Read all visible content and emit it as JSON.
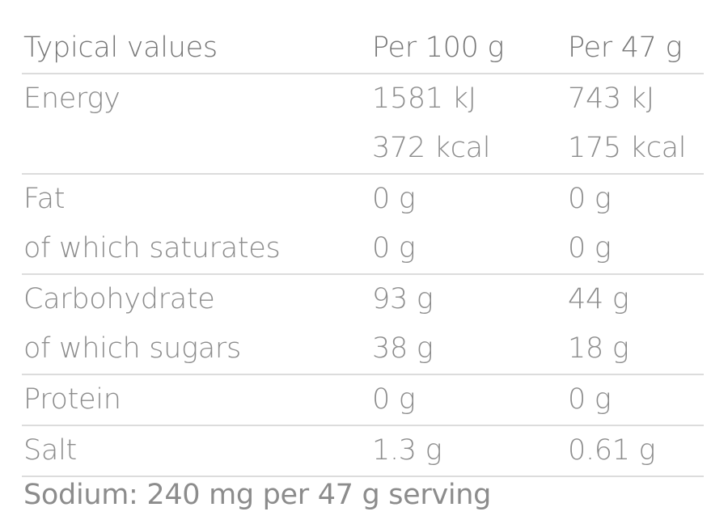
{
  "header": {
    "label": "Typical values",
    "col1": "Per 100 g",
    "col2": "Per 47 g"
  },
  "groups": [
    {
      "rows": [
        {
          "label": "Energy",
          "per100": "1581 kJ",
          "perServing": "743 kJ"
        },
        {
          "label": "",
          "per100": "372 kcal",
          "perServing": "175 kcal"
        }
      ]
    },
    {
      "rows": [
        {
          "label": "Fat",
          "per100": "0 g",
          "perServing": "0 g"
        },
        {
          "label": "of which saturates",
          "per100": "0 g",
          "perServing": "0 g"
        }
      ]
    },
    {
      "rows": [
        {
          "label": "Carbohydrate",
          "per100": "93 g",
          "perServing": "44 g"
        },
        {
          "label": "of which sugars",
          "per100": "38 g",
          "perServing": "18 g"
        }
      ]
    },
    {
      "rows": [
        {
          "label": "Protein",
          "per100": "0 g",
          "perServing": "0 g"
        }
      ]
    },
    {
      "rows": [
        {
          "label": "Salt",
          "per100": "1.3 g",
          "perServing": "0.61 g"
        }
      ]
    }
  ],
  "footnote": "Sodium: 240 mg per 47 g serving"
}
